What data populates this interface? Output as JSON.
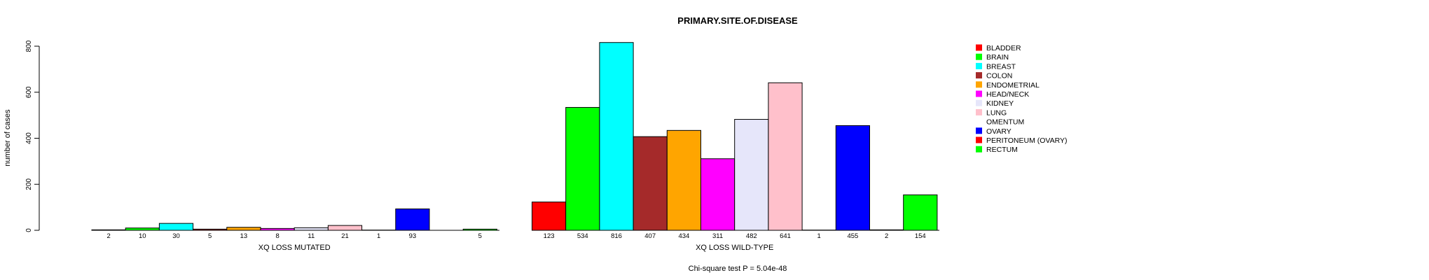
{
  "chart_data": {
    "type": "bar",
    "title": "PRIMARY.SITE.OF.DISEASE",
    "ylabel": "number of cases",
    "ylim": [
      0,
      800
    ],
    "yticks": [
      0,
      200,
      400,
      600,
      800
    ],
    "categories": [
      "BLADDER",
      "BRAIN",
      "BREAST",
      "COLON",
      "ENDOMETRIAL",
      "HEAD/NECK",
      "KIDNEY",
      "LUNG",
      "OMENTUM",
      "OVARY",
      "PERITONEUM (OVARY)",
      "RECTUM"
    ],
    "colors": [
      "#ff0000",
      "#00ff00",
      "#00ffff",
      "#a52a2a",
      "#ffa500",
      "#ff00ff",
      "#e6e6fa",
      "#ffc0cb",
      "#ffffff",
      "#0000ff",
      "#ff0000",
      "#00ff00"
    ],
    "series": [
      {
        "name": "XQ LOSS MUTATED",
        "values": [
          2,
          10,
          30,
          5,
          13,
          8,
          11,
          21,
          1,
          93,
          0,
          5
        ],
        "labels": [
          "2",
          "10",
          "30",
          "5",
          "13",
          "8",
          "11",
          "21",
          "1",
          "93",
          "",
          "5"
        ]
      },
      {
        "name": "XQ LOSS WILD-TYPE",
        "values": [
          123,
          534,
          816,
          407,
          434,
          311,
          482,
          641,
          1,
          455,
          2,
          154
        ],
        "labels": [
          "123",
          "534",
          "816",
          "407",
          "434",
          "311",
          "482",
          "641",
          "1",
          "455",
          "2",
          "154"
        ]
      }
    ],
    "legend_position": "right",
    "footer": "Chi-square test P = 5.04e-48"
  }
}
